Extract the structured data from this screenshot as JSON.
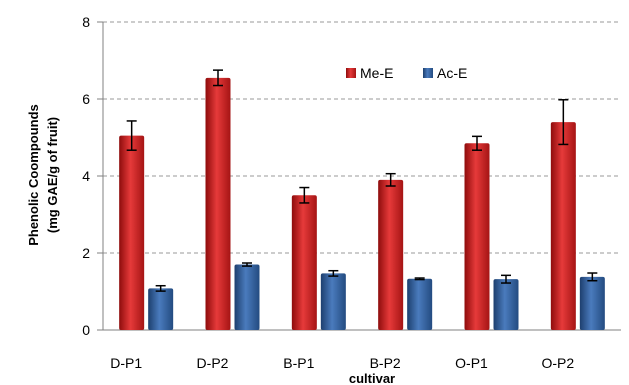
{
  "chart_data": {
    "type": "bar",
    "categories": [
      "D-P1",
      "D-P2",
      "B-P1",
      "B-P2",
      "O-P1",
      "O-P2"
    ],
    "series": [
      {
        "name": "Me-E",
        "values": [
          5.05,
          6.55,
          3.5,
          3.9,
          4.85,
          5.4
        ],
        "errors": [
          0.38,
          0.2,
          0.2,
          0.16,
          0.18,
          0.58
        ],
        "color": "#d42020"
      },
      {
        "name": "Ac-E",
        "values": [
          1.08,
          1.7,
          1.47,
          1.33,
          1.32,
          1.38
        ],
        "errors": [
          0.07,
          0.04,
          0.07,
          0.02,
          0.1,
          0.1
        ],
        "color": "#2f5f99"
      }
    ],
    "xlabel": "cultivar",
    "ylabel_line1": "Phenolic Coompounds",
    "ylabel_line2": "(mg GAE/g of fruit)",
    "ylim": [
      0,
      8
    ],
    "yticks": [
      0,
      2,
      4,
      6,
      8
    ],
    "grid": true,
    "legend_placement": "top-center"
  }
}
